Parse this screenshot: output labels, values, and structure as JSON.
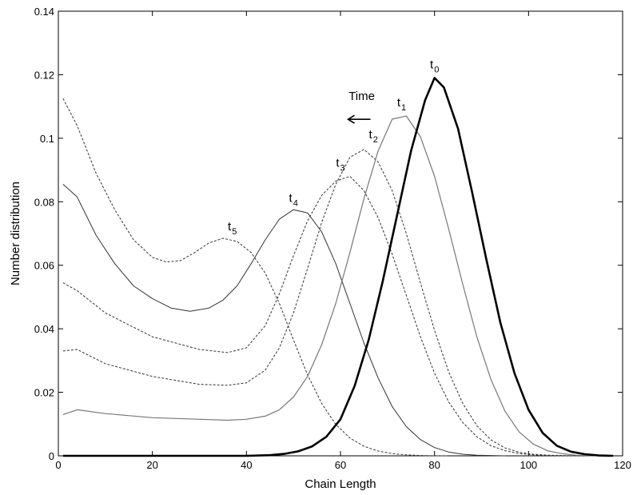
{
  "chart_data": {
    "type": "line",
    "title": "",
    "xlabel": "Chain Length",
    "ylabel": "Number distribution",
    "xlim": [
      0,
      120
    ],
    "ylim": [
      0,
      0.14
    ],
    "xticks": [
      0,
      20,
      40,
      60,
      80,
      100,
      120
    ],
    "yticks": [
      0,
      0.02,
      0.04,
      0.06,
      0.08,
      0.1,
      0.12,
      0.14
    ],
    "xtick_labels": [
      "0",
      "20",
      "40",
      "60",
      "80",
      "100",
      "120"
    ],
    "ytick_labels": [
      "0",
      "0.02",
      "0.04",
      "0.06",
      "0.08",
      "0.1",
      "0.12",
      "0.14"
    ],
    "grid": false,
    "annotation": {
      "text": "Time",
      "arrow": "left",
      "x": 64,
      "y": 0.112
    },
    "series": [
      {
        "name": "t0",
        "label_main": "t",
        "label_sub": "0",
        "label_x": 80,
        "label_y": 0.122,
        "color": "#000000",
        "style": "solid",
        "width": 2.6,
        "x": [
          1,
          40,
          45,
          48,
          51,
          54,
          57,
          60,
          63,
          66,
          69,
          72,
          75,
          78,
          80,
          82,
          85,
          88,
          91,
          94,
          97,
          100,
          103,
          106,
          109,
          112,
          115,
          118
        ],
        "y": [
          0,
          0,
          0.0002,
          0.0006,
          0.0014,
          0.003,
          0.006,
          0.0115,
          0.022,
          0.0365,
          0.055,
          0.0755,
          0.096,
          0.112,
          0.119,
          0.116,
          0.103,
          0.083,
          0.062,
          0.042,
          0.026,
          0.0145,
          0.0072,
          0.0032,
          0.0013,
          0.0005,
          0.0001,
          0
        ]
      },
      {
        "name": "t1",
        "label_main": "t",
        "label_sub": "1",
        "label_x": 73,
        "label_y": 0.11,
        "color": "#777777",
        "style": "solid",
        "width": 1.2,
        "x": [
          1,
          4,
          10,
          20,
          30,
          36,
          40,
          44,
          47,
          50,
          53,
          56,
          59,
          62,
          65,
          68,
          71,
          74,
          77,
          80,
          83,
          86,
          89,
          92,
          95,
          98,
          101,
          104,
          107,
          110,
          113,
          116
        ],
        "y": [
          0.013,
          0.0145,
          0.0133,
          0.012,
          0.0115,
          0.0112,
          0.0115,
          0.0125,
          0.0145,
          0.0185,
          0.025,
          0.035,
          0.048,
          0.064,
          0.081,
          0.096,
          0.106,
          0.107,
          0.1005,
          0.088,
          0.0715,
          0.054,
          0.0375,
          0.024,
          0.014,
          0.0075,
          0.0037,
          0.0016,
          0.0007,
          0.0002,
          0.0001,
          0
        ]
      },
      {
        "name": "t2",
        "label_main": "t",
        "label_sub": "2",
        "label_x": 67,
        "label_y": 0.1,
        "color": "#333333",
        "style": "dashed",
        "width": 1,
        "x": [
          1,
          4,
          10,
          20,
          30,
          36,
          40,
          44,
          47,
          50,
          53,
          56,
          59,
          62,
          65,
          68,
          71,
          74,
          77,
          80,
          83,
          86,
          89,
          92,
          95,
          98,
          101,
          104,
          107,
          110,
          113
        ],
        "y": [
          0.033,
          0.0335,
          0.029,
          0.025,
          0.0225,
          0.0222,
          0.023,
          0.027,
          0.034,
          0.045,
          0.059,
          0.0735,
          0.0855,
          0.094,
          0.0965,
          0.0925,
          0.0835,
          0.07,
          0.0545,
          0.0395,
          0.0265,
          0.0165,
          0.0095,
          0.005,
          0.0025,
          0.0011,
          0.0005,
          0.0002,
          0.0001,
          0,
          0
        ]
      },
      {
        "name": "t3",
        "label_main": "t",
        "label_sub": "3",
        "label_x": 60,
        "label_y": 0.091,
        "color": "#333333",
        "style": "dashed",
        "width": 1,
        "x": [
          1,
          4,
          10,
          20,
          30,
          36,
          40,
          44,
          47,
          50,
          53,
          56,
          59,
          62,
          65,
          68,
          71,
          74,
          77,
          80,
          83,
          86,
          89,
          92,
          95,
          98,
          101,
          104,
          107,
          110
        ],
        "y": [
          0.0545,
          0.052,
          0.045,
          0.0375,
          0.0335,
          0.0325,
          0.034,
          0.041,
          0.051,
          0.063,
          0.074,
          0.082,
          0.0865,
          0.088,
          0.0835,
          0.075,
          0.0635,
          0.0505,
          0.0375,
          0.026,
          0.017,
          0.0105,
          0.006,
          0.0032,
          0.0016,
          0.0007,
          0.0003,
          0.0001,
          0,
          0
        ]
      },
      {
        "name": "t4",
        "label_main": "t",
        "label_sub": "4",
        "label_x": 50,
        "label_y": 0.08,
        "color": "#333333",
        "style": "solid",
        "width": 1,
        "x": [
          1,
          4,
          8,
          12,
          16,
          20,
          24,
          28,
          32,
          35,
          38,
          41,
          44,
          47,
          50,
          53,
          56,
          59,
          62,
          65,
          68,
          71,
          74,
          77,
          80,
          83,
          86,
          89,
          92,
          95
        ],
        "y": [
          0.0855,
          0.0815,
          0.0695,
          0.0605,
          0.0535,
          0.0495,
          0.0465,
          0.0455,
          0.0465,
          0.049,
          0.0535,
          0.0605,
          0.068,
          0.0745,
          0.0775,
          0.0765,
          0.0705,
          0.0605,
          0.048,
          0.0355,
          0.0245,
          0.0155,
          0.0092,
          0.0051,
          0.0026,
          0.0012,
          0.0005,
          0.0002,
          0.0001,
          0
        ]
      },
      {
        "name": "t5",
        "label_main": "t",
        "label_sub": "5",
        "label_x": 37,
        "label_y": 0.071,
        "color": "#333333",
        "style": "dashed",
        "width": 1,
        "x": [
          1,
          4,
          8,
          12,
          16,
          20,
          23,
          26,
          29,
          32,
          35,
          38,
          41,
          44,
          47,
          50,
          53,
          56,
          59,
          62,
          65,
          68,
          71,
          74,
          77,
          80,
          83
        ],
        "y": [
          0.1125,
          0.104,
          0.089,
          0.0775,
          0.068,
          0.0625,
          0.061,
          0.0615,
          0.064,
          0.067,
          0.0685,
          0.0675,
          0.064,
          0.0575,
          0.048,
          0.0365,
          0.0255,
          0.0165,
          0.0099,
          0.0056,
          0.003,
          0.0015,
          0.0007,
          0.0003,
          0.0001,
          0,
          0
        ]
      }
    ]
  }
}
